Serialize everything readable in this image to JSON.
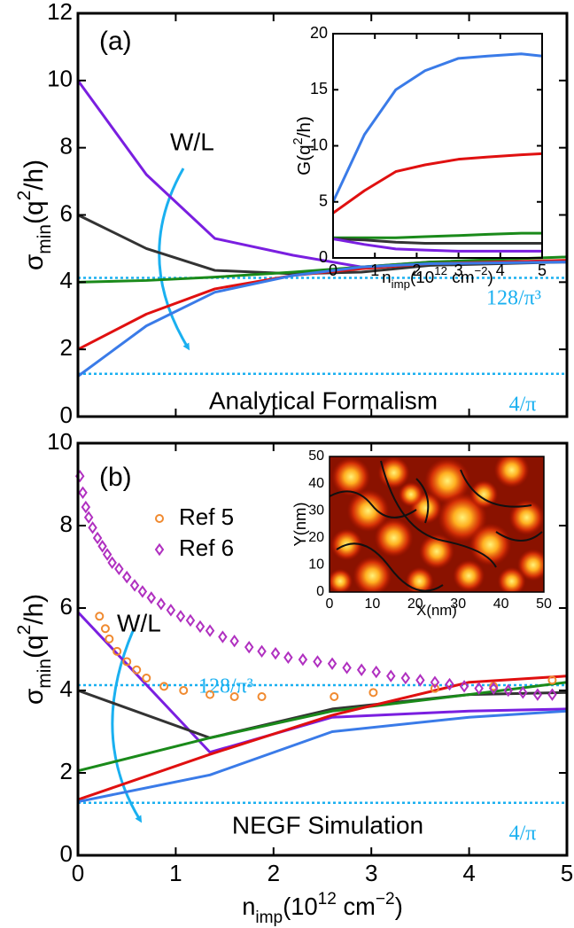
{
  "chart_data": [
    {
      "type": "line",
      "ylabel": [
        {
          "t": "σ"
        },
        {
          "t": "min",
          "s": "sub"
        },
        {
          "t": "(q"
        },
        {
          "t": "2",
          "s": "sup"
        },
        {
          "t": "/h)"
        }
      ],
      "xlim": [
        0,
        5
      ],
      "xticks": [
        0,
        1,
        2,
        3,
        4,
        5
      ],
      "xtick_labels": false,
      "ylim": [
        0,
        12
      ],
      "yticks": [
        0,
        2,
        4,
        6,
        8,
        10,
        12
      ],
      "x": [
        0,
        0.7,
        1.4,
        2.2,
        2.9,
        3.6,
        5
      ],
      "series": [
        {
          "color": "#7a1fe0",
          "values": [
            10,
            7.2,
            5.3,
            4.8,
            4.45,
            4.6,
            4.6
          ]
        },
        {
          "color": "#333333",
          "values": [
            6,
            5,
            4.35,
            4.25,
            4.3,
            4.5,
            4.6
          ]
        },
        {
          "color": "#1a8a1a",
          "values": [
            4.0,
            4.05,
            4.15,
            4.3,
            4.45,
            4.6,
            4.75
          ]
        },
        {
          "color": "#e01010",
          "values": [
            2.0,
            3.05,
            3.8,
            4.2,
            4.4,
            4.55,
            4.65
          ]
        },
        {
          "color": "#3a7be8",
          "values": [
            1.2,
            2.7,
            3.7,
            4.2,
            4.45,
            4.55,
            4.6
          ]
        }
      ],
      "hlines": [
        {
          "value": 4.128,
          "label": "128/π³",
          "color": "#1ab0f0"
        },
        {
          "value": 1.273,
          "label": "4/π",
          "color": "#1ab0f0"
        }
      ],
      "annotations": [
        "(a)",
        "W/L",
        "Analytical Formalism"
      ]
    },
    {
      "type": "line",
      "ylabel": [
        {
          "t": "G(q"
        },
        {
          "t": "2",
          "s": "sup"
        },
        {
          "t": "/h)"
        }
      ],
      "xlabel": [
        {
          "t": "n"
        },
        {
          "t": "imp",
          "s": "sub"
        },
        {
          "t": "(10"
        },
        {
          "t": "12",
          "s": "sup"
        },
        {
          "t": " cm"
        },
        {
          "t": "−2",
          "s": "sup"
        },
        {
          "t": ")"
        }
      ],
      "xlim": [
        0,
        5
      ],
      "xticks": [
        0,
        1,
        2,
        3,
        4,
        5
      ],
      "ylim": [
        0,
        20
      ],
      "yticks": [
        0,
        5,
        10,
        15,
        20
      ],
      "x": [
        0,
        0.75,
        1.5,
        2.2,
        3,
        3.7,
        4.5,
        5
      ],
      "series": [
        {
          "color": "#3a7be8",
          "values": [
            5,
            11,
            15,
            16.7,
            17.8,
            18,
            18.2,
            18
          ]
        },
        {
          "color": "#e01010",
          "values": [
            4,
            6,
            7.7,
            8.3,
            8.8,
            9,
            9.2,
            9.3
          ]
        },
        {
          "color": "#1a8a1a",
          "values": [
            1.8,
            1.8,
            1.8,
            1.9,
            2,
            2.1,
            2.2,
            2.2
          ]
        },
        {
          "color": "#333333",
          "values": [
            1.7,
            1.6,
            1.4,
            1.3,
            1.3,
            1.3,
            1.3,
            1.3
          ]
        },
        {
          "color": "#7a1fe0",
          "values": [
            1.7,
            1.2,
            0.8,
            0.7,
            0.6,
            0.6,
            0.6,
            0.6
          ]
        }
      ]
    },
    {
      "type": "line",
      "ylabel": [
        {
          "t": "σ"
        },
        {
          "t": "min",
          "s": "sub"
        },
        {
          "t": "(q"
        },
        {
          "t": "2",
          "s": "sup"
        },
        {
          "t": "/h)"
        }
      ],
      "xlabel": [
        {
          "t": "n"
        },
        {
          "t": "imp",
          "s": "sub"
        },
        {
          "t": "(10"
        },
        {
          "t": "12",
          "s": "sup"
        },
        {
          "t": " cm"
        },
        {
          "t": "−2",
          "s": "sup"
        },
        {
          "t": ")"
        }
      ],
      "xlim": [
        0,
        5
      ],
      "xticks": [
        0,
        1,
        2,
        3,
        4,
        5
      ],
      "ylim": [
        0,
        10
      ],
      "yticks": [
        0,
        2,
        4,
        6,
        8,
        10
      ],
      "x": [
        0,
        1.35,
        2.6,
        4,
        5
      ],
      "series": [
        {
          "color": "#7a1fe0",
          "values": [
            5.9,
            2.5,
            3.35,
            3.5,
            3.55
          ]
        },
        {
          "color": "#333333",
          "values": [
            4.0,
            2.85,
            3.55,
            3.9,
            3.95
          ]
        },
        {
          "color": "#1a8a1a",
          "values": [
            2.05,
            2.85,
            3.5,
            3.9,
            4.2
          ]
        },
        {
          "color": "#e01010",
          "values": [
            1.35,
            2.45,
            3.4,
            4.2,
            4.35
          ]
        },
        {
          "color": "#3a7be8",
          "values": [
            1.3,
            1.95,
            3.0,
            3.35,
            3.5
          ]
        },
        {
          "name": "Ref 5",
          "marker": "circle",
          "color": "#f08a30",
          "x": [
            0.22,
            0.28,
            0.32,
            0.4,
            0.5,
            0.6,
            0.7,
            0.88,
            1.08,
            1.35,
            1.6,
            1.88,
            2.62,
            3.02,
            3.65,
            4.25,
            4.85
          ],
          "values": [
            5.8,
            5.5,
            5.25,
            4.95,
            4.7,
            4.5,
            4.3,
            4.1,
            4.0,
            3.9,
            3.85,
            3.85,
            3.85,
            3.95,
            4.05,
            4.1,
            4.25
          ]
        },
        {
          "name": "Ref 6",
          "marker": "diamond",
          "color": "#b030c0",
          "x": [
            0.02,
            0.05,
            0.08,
            0.11,
            0.15,
            0.2,
            0.25,
            0.3,
            0.35,
            0.42,
            0.5,
            0.58,
            0.66,
            0.75,
            0.85,
            0.95,
            1.05,
            1.15,
            1.25,
            1.35,
            1.48,
            1.6,
            1.75,
            1.88,
            2.02,
            2.15,
            2.3,
            2.45,
            2.6,
            2.75,
            2.9,
            3.05,
            3.2,
            3.35,
            3.5,
            3.65,
            3.8,
            3.95,
            4.1,
            4.25,
            4.4,
            4.55,
            4.7,
            4.85
          ],
          "values": [
            9.2,
            8.8,
            8.45,
            8.2,
            7.95,
            7.7,
            7.5,
            7.3,
            7.1,
            6.95,
            6.75,
            6.55,
            6.4,
            6.25,
            6.1,
            5.95,
            5.8,
            5.7,
            5.55,
            5.45,
            5.3,
            5.2,
            5.05,
            4.95,
            4.9,
            4.8,
            4.75,
            4.7,
            4.65,
            4.55,
            4.5,
            4.45,
            4.35,
            4.3,
            4.25,
            4.2,
            4.15,
            4.1,
            4.05,
            4.05,
            4.0,
            3.95,
            3.9,
            3.9
          ]
        }
      ],
      "hlines": [
        {
          "value": 4.128,
          "label": "128/π³",
          "color": "#1ab0f0"
        },
        {
          "value": 1.273,
          "label": "4/π",
          "color": "#1ab0f0"
        }
      ],
      "annotations": [
        "(b)",
        "W/L",
        "NEGF Simulation"
      ]
    },
    {
      "type": "heatmap",
      "ylabel": [
        {
          "t": "Y(nm)"
        }
      ],
      "xlabel": [
        {
          "t": "X(nm)"
        }
      ],
      "xlim": [
        0,
        50
      ],
      "xticks": [
        0,
        10,
        20,
        30,
        40,
        50
      ],
      "ylim": [
        0,
        50
      ],
      "yticks": [
        0,
        10,
        20,
        30,
        40,
        50
      ]
    }
  ]
}
